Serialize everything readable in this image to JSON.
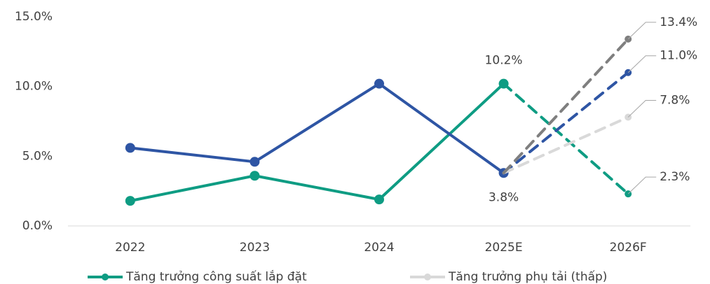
{
  "chart_data": {
    "type": "line",
    "categories": [
      "2022",
      "2023",
      "2024",
      "2025E",
      "2026F"
    ],
    "dashed_after": "2025E",
    "ylim": [
      0,
      15
    ],
    "yticks": [
      {
        "value": 0,
        "label": "0.0%"
      },
      {
        "value": 5,
        "label": "5.0%"
      },
      {
        "value": 10,
        "label": "10.0%"
      },
      {
        "value": 15,
        "label": "15.0%"
      }
    ],
    "series": [
      {
        "name": "Tăng trưởng công suất lắp đặt",
        "color": "#0e9c83",
        "values": [
          1.8,
          3.6,
          1.9,
          10.2,
          2.3
        ],
        "value_labels": [
          null,
          null,
          null,
          "10.2%",
          "2.3%"
        ]
      },
      {
        "color": "#2e55a4",
        "values": [
          5.6,
          4.6,
          10.2,
          3.8,
          11.0
        ],
        "value_labels": [
          null,
          null,
          null,
          "3.8%",
          "11.0%"
        ]
      },
      {
        "name": "Tăng trưởng phụ tải (thấp)",
        "color": "#d9d9d9",
        "values": [
          null,
          null,
          null,
          3.8,
          7.8
        ],
        "value_labels": [
          null,
          null,
          null,
          null,
          "7.8%"
        ]
      },
      {
        "color": "#7f7f7f",
        "values": [
          null,
          null,
          null,
          3.8,
          13.4
        ],
        "value_labels": [
          null,
          null,
          null,
          null,
          "13.4%"
        ]
      }
    ]
  }
}
